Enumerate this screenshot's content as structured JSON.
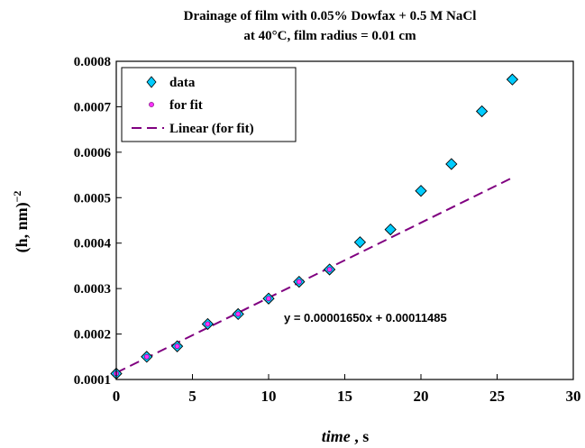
{
  "chart_data": {
    "type": "scatter",
    "title_line1": "Drainage of film with 0.05% Dowfax + 0.5 M NaCl",
    "title_line2": "at 40°C, film radius = 0.01 cm",
    "xlabel_italic": "time",
    "xlabel_rest": " , s",
    "ylabel_base": "(h, nm)",
    "ylabel_exp": "−2",
    "xlim": [
      0,
      30
    ],
    "ylim": [
      0.0001,
      0.0008
    ],
    "x_ticks": [
      "0",
      "5",
      "10",
      "15",
      "20",
      "25",
      "30"
    ],
    "x_tick_values": [
      0,
      5,
      10,
      15,
      20,
      25,
      30
    ],
    "y_ticks": [
      "0.0001",
      "0.0002",
      "0.0003",
      "0.0004",
      "0.0005",
      "0.0006",
      "0.0007",
      "0.0008"
    ],
    "y_tick_values": [
      0.0001,
      0.0002,
      0.0003,
      0.0004,
      0.0005,
      0.0006,
      0.0007,
      0.0008
    ],
    "grid": false,
    "legend_position": "top-left",
    "series": [
      {
        "name": "data",
        "marker": "diamond",
        "color": "#00ccff",
        "x": [
          0,
          2,
          4,
          6,
          8,
          10,
          12,
          14,
          16,
          18,
          20,
          22,
          24,
          26
        ],
        "y": [
          0.000113,
          0.00015,
          0.000173,
          0.000222,
          0.000244,
          0.000278,
          0.000315,
          0.000342,
          0.000402,
          0.00043,
          0.000515,
          0.000574,
          0.00069,
          0.00076
        ]
      },
      {
        "name": "for fit",
        "marker": "circle",
        "color": "#ff33ff",
        "x": [
          0,
          2,
          4,
          6,
          8,
          10,
          12,
          14
        ],
        "y": [
          0.000113,
          0.00015,
          0.000173,
          0.000222,
          0.000244,
          0.000278,
          0.000315,
          0.000342
        ]
      },
      {
        "name": "Linear (for fit)",
        "style": "dashed-line",
        "color": "#800080",
        "slope": 1.65e-05,
        "intercept": 0.00011485,
        "x_range": [
          0,
          26
        ]
      }
    ],
    "annotation": "y = 0.00001650x + 0.00011485"
  }
}
